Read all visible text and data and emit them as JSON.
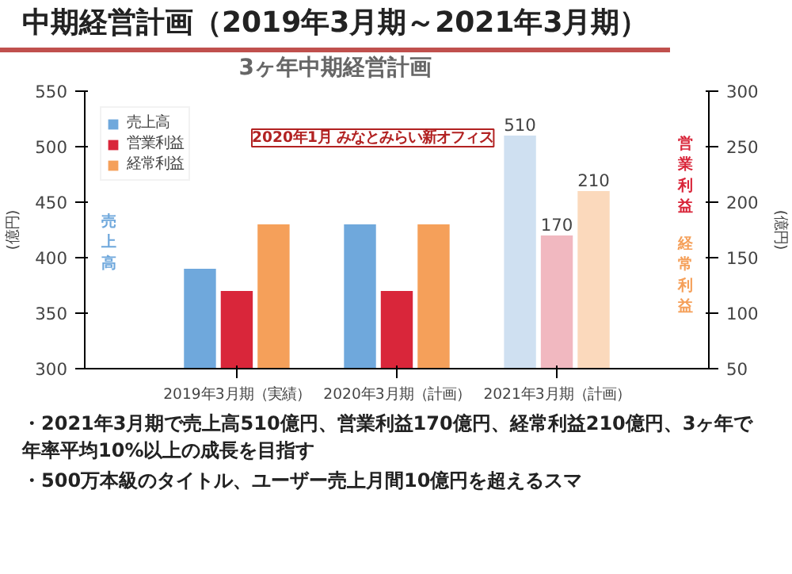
{
  "chart_data": {
    "type": "bar",
    "title": "中期経営計画（2019年3月期～2021年3月期）",
    "subtitle": "3ヶ年中期経営計画",
    "categories": [
      "2019年3月期（実績）",
      "2020年3月期（計画）",
      "2021年3月期（計画）"
    ],
    "ylabel": "(億円)",
    "y2label": "(億円)",
    "ylim": [
      300,
      550
    ],
    "yticks": [
      300,
      350,
      400,
      450,
      500,
      550
    ],
    "y2lim": [
      50,
      300
    ],
    "y2ticks": [
      50,
      100,
      150,
      200,
      250,
      300
    ],
    "series": [
      {
        "name": "売上高",
        "color": "#6fa8dc",
        "colors": [
          "#6fa8dc",
          "#6fa8dc",
          "#cfe0f1"
        ],
        "values": [
          390,
          430,
          510
        ],
        "value_labels": [
          null,
          null,
          "510"
        ]
      },
      {
        "name": "営業利益",
        "color": "#d9263a",
        "colors": [
          "#d9263a",
          "#d9263a",
          "#f1b8c0"
        ],
        "values": [
          120,
          120,
          170
        ],
        "axis": "y2",
        "value_labels": [
          null,
          null,
          "170"
        ]
      },
      {
        "name": "経常利益",
        "color": "#f5a05a",
        "colors": [
          "#f5a05a",
          "#f5a05a",
          "#fbd9bc"
        ],
        "values": [
          180,
          180,
          210
        ],
        "axis": "y2",
        "value_labels": [
          null,
          null,
          "210"
        ]
      }
    ],
    "legend": "top left",
    "grid": false,
    "annotations": [
      "2020年1月 みなとみらい新オフィス",
      "売上高",
      "営業利益",
      "経常利益",
      "・2021年3月期で売上高510億円、営業利益170億円、経常利益210億円、3ヶ年で年率平均10%以上の成長を目指す",
      "・500万本級のタイトル、ユーザー売上月間10億円を超えるスマ"
    ]
  }
}
